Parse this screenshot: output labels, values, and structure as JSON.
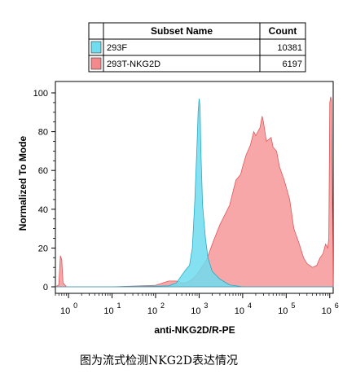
{
  "legend": {
    "header_name": "Subset Name",
    "header_count": "Count",
    "rows": [
      {
        "name": "293F",
        "count": "10381",
        "color": "#6fdcef"
      },
      {
        "name": "293T-NKG2D",
        "count": "6197",
        "color": "#f4898b"
      }
    ]
  },
  "caption": "图为流式检测NKG2D表达情况",
  "chart_data": {
    "type": "area",
    "xlabel": "anti-NKG2D/R-PE",
    "ylabel": "Normalized To Mode",
    "x_scale": "log10",
    "xlim": [
      0.5,
      1200000
    ],
    "ylim": [
      0,
      100
    ],
    "y_ticks": [
      0,
      20,
      40,
      60,
      80,
      100
    ],
    "x_tick_labels": [
      {
        "base": "10",
        "exp": "0"
      },
      {
        "base": "10",
        "exp": "1"
      },
      {
        "base": "10",
        "exp": "2"
      },
      {
        "base": "10",
        "exp": "3"
      },
      {
        "base": "10",
        "exp": "4"
      },
      {
        "base": "10",
        "exp": "5"
      },
      {
        "base": "10",
        "exp": "6"
      }
    ],
    "series": [
      {
        "name": "293F",
        "color": "#6fdcef",
        "points": [
          [
            0.5,
            0
          ],
          [
            1,
            0
          ],
          [
            10,
            0
          ],
          [
            100,
            0.3
          ],
          [
            200,
            0.5
          ],
          [
            300,
            2
          ],
          [
            400,
            6
          ],
          [
            500,
            9
          ],
          [
            600,
            11
          ],
          [
            700,
            20
          ],
          [
            800,
            45
          ],
          [
            900,
            75
          ],
          [
            950,
            90
          ],
          [
            1000,
            97
          ],
          [
            1050,
            93
          ],
          [
            1100,
            70
          ],
          [
            1200,
            42
          ],
          [
            1400,
            25
          ],
          [
            1600,
            15
          ],
          [
            2000,
            8
          ],
          [
            3000,
            4
          ],
          [
            5000,
            1
          ],
          [
            10000,
            0
          ],
          [
            1200000,
            0
          ]
        ]
      },
      {
        "name": "293T-NKG2D",
        "color": "#f4898b",
        "points": [
          [
            0.5,
            0
          ],
          [
            0.6,
            1
          ],
          [
            0.65,
            16
          ],
          [
            0.7,
            14
          ],
          [
            0.75,
            2
          ],
          [
            0.9,
            0
          ],
          [
            10,
            0
          ],
          [
            100,
            0.8
          ],
          [
            200,
            3
          ],
          [
            300,
            3
          ],
          [
            400,
            2
          ],
          [
            500,
            2
          ],
          [
            600,
            3
          ],
          [
            700,
            4
          ],
          [
            800,
            5
          ],
          [
            1000,
            8
          ],
          [
            1500,
            14
          ],
          [
            2000,
            22
          ],
          [
            3000,
            32
          ],
          [
            5000,
            42
          ],
          [
            7000,
            55
          ],
          [
            9000,
            58
          ],
          [
            10000,
            62
          ],
          [
            12000,
            68
          ],
          [
            15000,
            73
          ],
          [
            18000,
            80
          ],
          [
            20000,
            78
          ],
          [
            25000,
            82
          ],
          [
            28000,
            88
          ],
          [
            30000,
            85
          ],
          [
            35000,
            75
          ],
          [
            40000,
            76
          ],
          [
            45000,
            77
          ],
          [
            50000,
            72
          ],
          [
            60000,
            70
          ],
          [
            70000,
            62
          ],
          [
            90000,
            55
          ],
          [
            120000,
            45
          ],
          [
            150000,
            30
          ],
          [
            200000,
            22
          ],
          [
            250000,
            15
          ],
          [
            300000,
            12
          ],
          [
            400000,
            10
          ],
          [
            500000,
            11
          ],
          [
            600000,
            15
          ],
          [
            700000,
            17
          ],
          [
            800000,
            22
          ],
          [
            900000,
            20
          ],
          [
            950000,
            25
          ],
          [
            1000000,
            95
          ],
          [
            1050000,
            98
          ],
          [
            1100000,
            96
          ],
          [
            1200000,
            0
          ]
        ]
      }
    ]
  }
}
